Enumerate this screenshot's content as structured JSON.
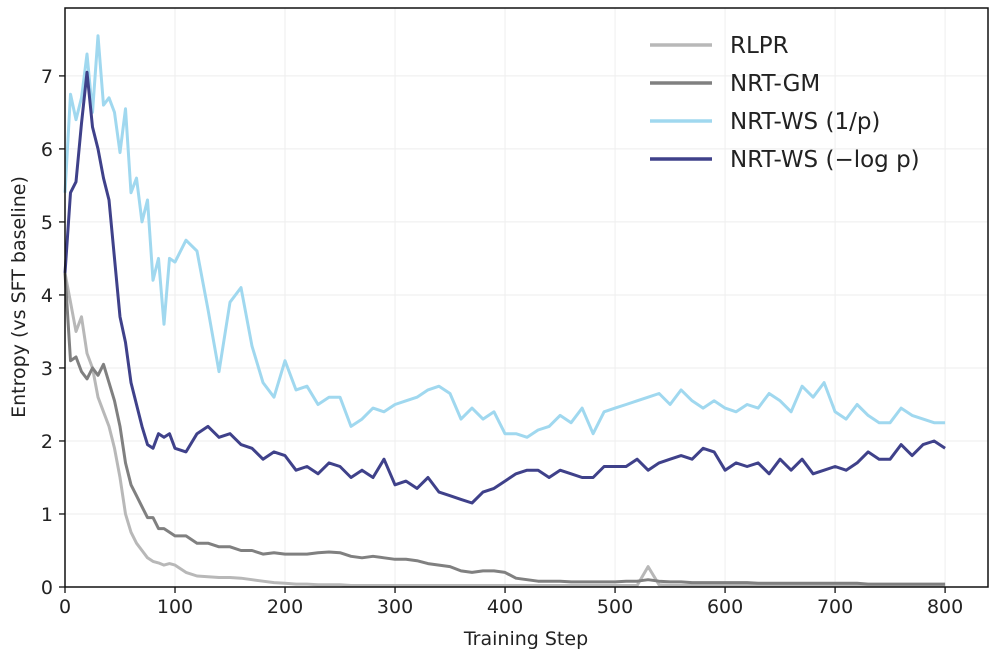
{
  "chart_data": {
    "type": "line",
    "title": "",
    "xlabel": "Training Step",
    "ylabel": "Entropy (vs SFT baseline)",
    "xlim": [
      0,
      839
    ],
    "ylim": [
      0,
      7.93
    ],
    "xticks": [
      0,
      100,
      200,
      300,
      400,
      500,
      600,
      700,
      800
    ],
    "yticks": [
      0,
      1,
      2,
      3,
      4,
      5,
      6,
      7
    ],
    "grid": true,
    "legend_position": "top-right",
    "x": [
      0,
      5,
      10,
      15,
      20,
      25,
      30,
      35,
      40,
      45,
      50,
      55,
      60,
      65,
      70,
      75,
      80,
      85,
      90,
      95,
      100,
      110,
      120,
      130,
      140,
      150,
      160,
      170,
      180,
      190,
      200,
      210,
      220,
      230,
      240,
      250,
      260,
      270,
      280,
      290,
      300,
      310,
      320,
      330,
      340,
      350,
      360,
      370,
      380,
      390,
      400,
      410,
      420,
      430,
      440,
      450,
      460,
      470,
      480,
      490,
      500,
      510,
      520,
      530,
      540,
      550,
      560,
      570,
      580,
      590,
      600,
      610,
      620,
      630,
      640,
      650,
      660,
      670,
      680,
      690,
      700,
      710,
      720,
      730,
      740,
      750,
      760,
      770,
      780,
      790,
      800
    ],
    "series": [
      {
        "name": "RLPR",
        "color": "#b8b8b8",
        "values": [
          4.3,
          3.9,
          3.5,
          3.7,
          3.2,
          3.0,
          2.6,
          2.4,
          2.2,
          1.9,
          1.5,
          1.0,
          0.75,
          0.6,
          0.5,
          0.4,
          0.35,
          0.33,
          0.3,
          0.32,
          0.3,
          0.2,
          0.15,
          0.14,
          0.13,
          0.13,
          0.12,
          0.1,
          0.08,
          0.06,
          0.05,
          0.04,
          0.04,
          0.03,
          0.03,
          0.03,
          0.02,
          0.02,
          0.02,
          0.02,
          0.02,
          0.02,
          0.02,
          0.02,
          0.02,
          0.02,
          0.02,
          0.02,
          0.02,
          0.02,
          0.02,
          0.02,
          0.02,
          0.02,
          0.02,
          0.02,
          0.02,
          0.02,
          0.02,
          0.02,
          0.02,
          0.02,
          0.02,
          0.28,
          0.03,
          0.02,
          0.02,
          0.02,
          0.02,
          0.02,
          0.02,
          0.02,
          0.02,
          0.02,
          0.02,
          0.02,
          0.02,
          0.02,
          0.02,
          0.02,
          0.02,
          0.02,
          0.02,
          0.02,
          0.02,
          0.02,
          0.02,
          0.02,
          0.02,
          0.02,
          0.02
        ]
      },
      {
        "name": "NRT-GM",
        "color": "#808080",
        "values": [
          4.3,
          3.1,
          3.15,
          2.95,
          2.85,
          3.0,
          2.9,
          3.05,
          2.8,
          2.55,
          2.2,
          1.7,
          1.4,
          1.25,
          1.1,
          0.95,
          0.95,
          0.8,
          0.8,
          0.75,
          0.7,
          0.7,
          0.6,
          0.6,
          0.55,
          0.55,
          0.5,
          0.5,
          0.45,
          0.47,
          0.45,
          0.45,
          0.45,
          0.47,
          0.48,
          0.47,
          0.42,
          0.4,
          0.42,
          0.4,
          0.38,
          0.38,
          0.36,
          0.32,
          0.3,
          0.28,
          0.22,
          0.2,
          0.22,
          0.22,
          0.2,
          0.12,
          0.1,
          0.08,
          0.08,
          0.08,
          0.07,
          0.07,
          0.07,
          0.07,
          0.07,
          0.08,
          0.08,
          0.1,
          0.08,
          0.07,
          0.07,
          0.06,
          0.06,
          0.06,
          0.06,
          0.06,
          0.06,
          0.05,
          0.05,
          0.05,
          0.05,
          0.05,
          0.05,
          0.05,
          0.05,
          0.05,
          0.05,
          0.04,
          0.04,
          0.04,
          0.04,
          0.04,
          0.04,
          0.04,
          0.04
        ]
      },
      {
        "name": "NRT-WS (1/p)",
        "color": "#a0d8ef",
        "values": [
          5.4,
          6.75,
          6.4,
          6.7,
          7.3,
          6.5,
          7.55,
          6.6,
          6.7,
          6.5,
          5.95,
          6.55,
          5.4,
          5.6,
          5.0,
          5.3,
          4.2,
          4.5,
          3.6,
          4.5,
          4.45,
          4.75,
          4.6,
          3.8,
          2.95,
          3.9,
          4.1,
          3.3,
          2.8,
          2.6,
          3.1,
          2.7,
          2.75,
          2.5,
          2.6,
          2.6,
          2.2,
          2.3,
          2.45,
          2.4,
          2.5,
          2.55,
          2.6,
          2.7,
          2.75,
          2.65,
          2.3,
          2.45,
          2.3,
          2.4,
          2.1,
          2.1,
          2.05,
          2.15,
          2.2,
          2.35,
          2.25,
          2.45,
          2.1,
          2.4,
          2.45,
          2.5,
          2.55,
          2.6,
          2.65,
          2.5,
          2.7,
          2.55,
          2.45,
          2.55,
          2.45,
          2.4,
          2.5,
          2.45,
          2.65,
          2.55,
          2.4,
          2.75,
          2.6,
          2.8,
          2.4,
          2.3,
          2.5,
          2.35,
          2.25,
          2.25,
          2.45,
          2.35,
          2.3,
          2.25,
          2.25
        ]
      },
      {
        "name": "NRT-WS (−log p)",
        "color": "#3f418a",
        "values": [
          4.3,
          5.4,
          5.55,
          6.35,
          7.05,
          6.3,
          6.0,
          5.6,
          5.3,
          4.5,
          3.7,
          3.35,
          2.8,
          2.5,
          2.2,
          1.95,
          1.9,
          2.1,
          2.05,
          2.1,
          1.9,
          1.85,
          2.1,
          2.2,
          2.05,
          2.1,
          1.95,
          1.9,
          1.75,
          1.85,
          1.8,
          1.6,
          1.65,
          1.55,
          1.7,
          1.65,
          1.5,
          1.6,
          1.5,
          1.75,
          1.4,
          1.45,
          1.35,
          1.5,
          1.3,
          1.25,
          1.2,
          1.15,
          1.3,
          1.35,
          1.45,
          1.55,
          1.6,
          1.6,
          1.5,
          1.6,
          1.55,
          1.5,
          1.5,
          1.65,
          1.65,
          1.65,
          1.75,
          1.6,
          1.7,
          1.75,
          1.8,
          1.75,
          1.9,
          1.85,
          1.6,
          1.7,
          1.65,
          1.7,
          1.55,
          1.75,
          1.6,
          1.75,
          1.55,
          1.6,
          1.65,
          1.6,
          1.7,
          1.85,
          1.75,
          1.75,
          1.95,
          1.8,
          1.95,
          2.0,
          1.9
        ]
      }
    ]
  }
}
